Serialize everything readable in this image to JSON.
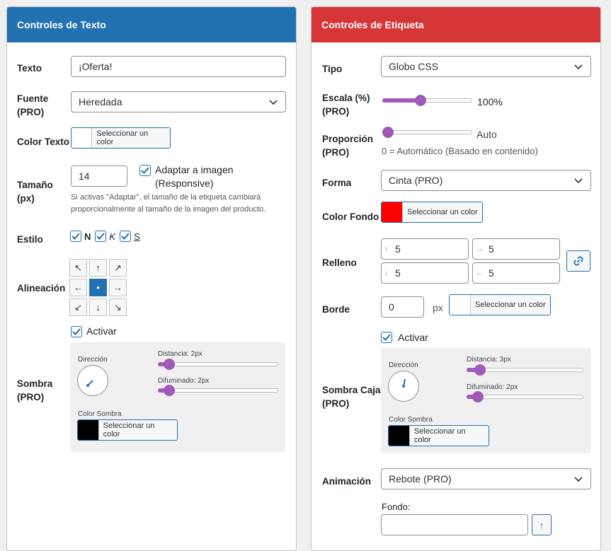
{
  "left": {
    "header": "Controles de Texto",
    "texto": {
      "label": "Texto",
      "value": "¡Oferta!"
    },
    "fuente": {
      "label": "Fuente\n(PRO)",
      "value": "Heredada"
    },
    "color_texto": {
      "label": "Color Texto",
      "button": "Seleccionar un color",
      "swatch": "#ffffff"
    },
    "tamano": {
      "label": "Tamaño\n(px)",
      "value": "14",
      "adapt_label": "Adaptar a imagen\n(Responsive)",
      "help": "Si activas \"Adaptar\", el tamaño de la etiqueta cambiará proporcionalmente al tamaño de la imagen del producto."
    },
    "estilo": {
      "label": "Estilo",
      "bold": "N",
      "italic": "K",
      "underline": "S"
    },
    "alineacion": {
      "label": "Alineación",
      "arrows": [
        "↖",
        "↑",
        "↗",
        "←",
        "•",
        "→",
        "↙",
        "↓",
        "↘"
      ],
      "active_index": 4
    },
    "sombra": {
      "activar": "Activar",
      "label": "Sombra\n(PRO)",
      "direccion": "Dirección",
      "distancia": "Distancia: 2px",
      "difuminado": "Difuminado: 2px",
      "distancia_value": 2,
      "difuminado_value": 2,
      "color_label": "Color Sombra",
      "button": "Seleccionar un color",
      "swatch": "#000000"
    }
  },
  "right": {
    "header": "Controles de Etiqueta",
    "tipo": {
      "label": "Tipo",
      "value": "Globo CSS"
    },
    "escala": {
      "label": "Escala (%)\n(PRO)",
      "value": "100%",
      "percent": 100
    },
    "proporcion": {
      "label": "Proporción\n(PRO)",
      "value": "Auto",
      "help": "0 = Automático (Basado en contenido)"
    },
    "forma": {
      "label": "Forma",
      "value": "Cinta (PRO)"
    },
    "color_fondo": {
      "label": "Color Fondo",
      "button": "Seleccionar un color",
      "swatch": "#ff0000"
    },
    "relleno": {
      "label": "Relleno",
      "top_icon": "↑",
      "top": "5",
      "right_icon": "→",
      "right": "5",
      "bottom_icon": "↓",
      "bottom": "5",
      "left_icon": "←",
      "left": "5"
    },
    "borde": {
      "label": "Borde",
      "value": "0",
      "unit": "px",
      "button": "Seleccionar un color",
      "swatch": "#ffffff"
    },
    "sombra_caja": {
      "activar": "Activar",
      "label": "Sombra Caja\n(PRO)",
      "direccion": "Dirección",
      "distancia": "Distancia: 3px",
      "difuminado": "Difuminado: 2px",
      "distancia_value": 3,
      "difuminado_value": 2,
      "color_label": "Color Sombra",
      "button": "Seleccionar un color",
      "swatch": "#000000"
    },
    "animacion": {
      "label": "Animación",
      "value": "Rebote (PRO)"
    },
    "fondo": {
      "label": "Fondo:",
      "value": "",
      "upload_icon": "↑"
    }
  },
  "colors": {
    "blue": "#2271b1",
    "red": "#d63638",
    "purple": "#a05ab9"
  }
}
